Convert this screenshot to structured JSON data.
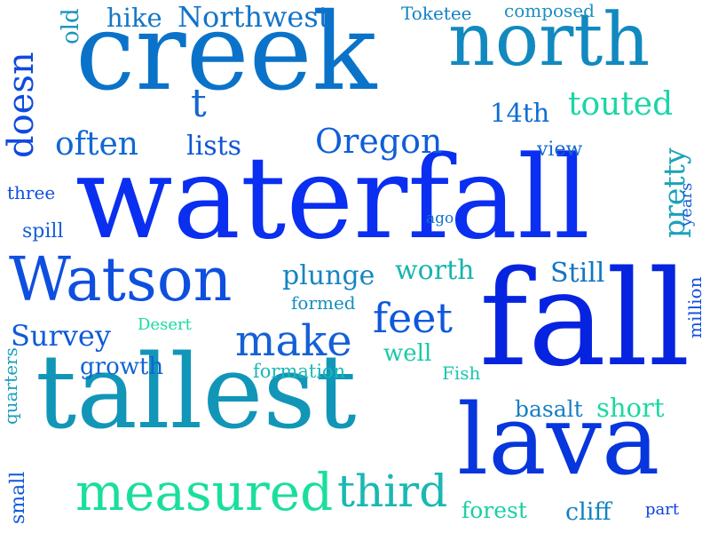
{
  "words": [
    {
      "text": "waterfall",
      "color": "#0a2ff0"
    },
    {
      "text": "creek",
      "color": "#0a73c9"
    },
    {
      "text": "fall",
      "color": "#0624e0"
    },
    {
      "text": "tallest",
      "color": "#1196b8"
    },
    {
      "text": "lava",
      "color": "#0736dd"
    },
    {
      "text": "north",
      "color": "#1289bf"
    },
    {
      "text": "Watson",
      "color": "#0f4fe0"
    },
    {
      "text": "measured",
      "color": "#1adf9a"
    },
    {
      "text": "third",
      "color": "#1ab8b3"
    },
    {
      "text": "make",
      "color": "#1460d6"
    },
    {
      "text": "feet",
      "color": "#0f58dc"
    },
    {
      "text": "Oregon",
      "color": "#0f5ed9"
    },
    {
      "text": "often",
      "color": "#0f68d2"
    },
    {
      "text": "touted",
      "color": "#1ad6a5"
    },
    {
      "text": "Northwest",
      "color": "#1274c8"
    },
    {
      "text": "Survey",
      "color": "#0f5ad8"
    },
    {
      "text": "plunge",
      "color": "#1684c3"
    },
    {
      "text": "worth",
      "color": "#17b5ad"
    },
    {
      "text": "Still",
      "color": "#1176c6"
    },
    {
      "text": "lists",
      "color": "#0f56d8"
    },
    {
      "text": "14th",
      "color": "#0f6ed0"
    },
    {
      "text": "hike",
      "color": "#1477c8"
    },
    {
      "text": "short",
      "color": "#1ad9a0"
    },
    {
      "text": "basalt",
      "color": "#1680c4"
    },
    {
      "text": "growth",
      "color": "#1164d2"
    },
    {
      "text": "well",
      "color": "#1ac8a8"
    },
    {
      "text": "cliff",
      "color": "#1282c2"
    },
    {
      "text": "forest",
      "color": "#1acfa6"
    },
    {
      "text": "formation",
      "color": "#1ab8b3"
    },
    {
      "text": "formed",
      "color": "#168ebf"
    },
    {
      "text": "view",
      "color": "#1668cf"
    },
    {
      "text": "composed",
      "color": "#1a8fc0"
    },
    {
      "text": "Toketee",
      "color": "#1280c4"
    },
    {
      "text": "three",
      "color": "#0f4fde"
    },
    {
      "text": "spill",
      "color": "#0f5ed9"
    },
    {
      "text": "ago",
      "color": "#1670cd"
    },
    {
      "text": "Fish",
      "color": "#1ac6aa"
    },
    {
      "text": "Desert",
      "color": "#1ad9a1"
    },
    {
      "text": "part",
      "color": "#0f3fe0"
    },
    {
      "text": "t",
      "color": "#1468d0"
    },
    {
      "text": "doesn",
      "color": "#0f4adf"
    },
    {
      "text": "old",
      "color": "#1a94bd"
    },
    {
      "text": "pretty",
      "color": "#1aa2b8"
    },
    {
      "text": "years",
      "color": "#0f5ed9"
    },
    {
      "text": "million",
      "color": "#0f4ede"
    },
    {
      "text": "quarters",
      "color": "#1a9ebb"
    },
    {
      "text": "small",
      "color": "#0f58da"
    }
  ]
}
